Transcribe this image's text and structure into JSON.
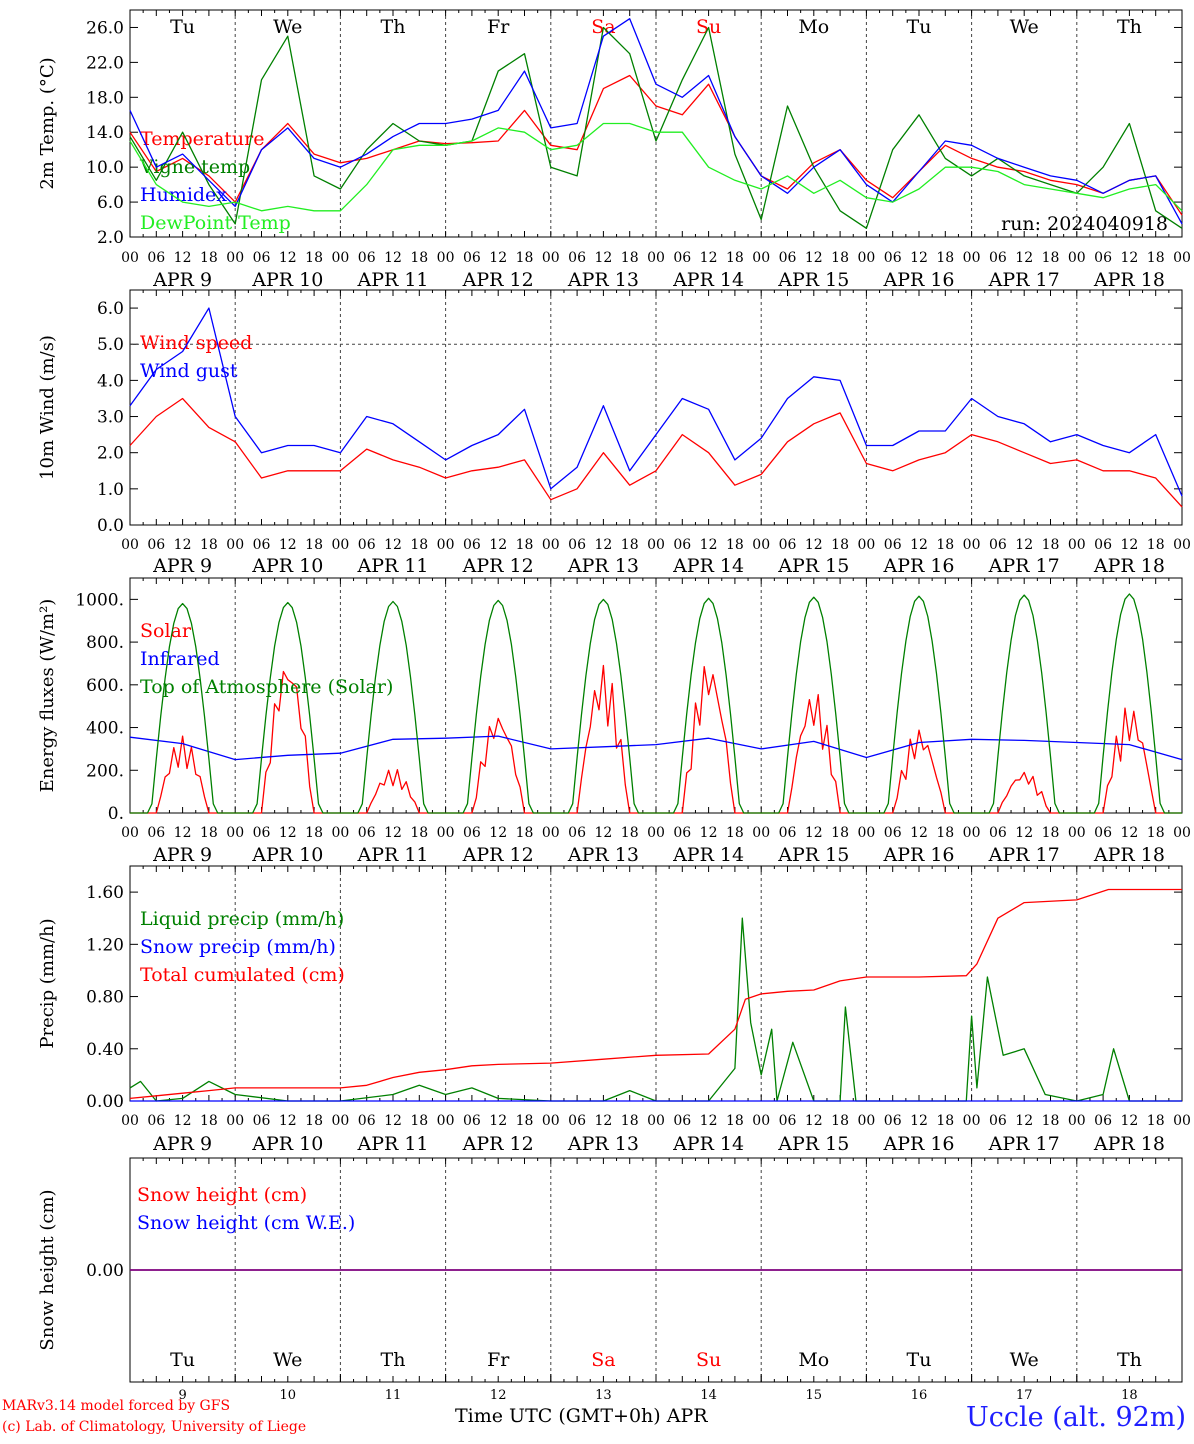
{
  "meta": {
    "days": 10,
    "day_abbrev": [
      "Tu",
      "We",
      "Th",
      "Fr",
      "Sa",
      "Su",
      "Mo",
      "Tu",
      "We",
      "Th"
    ],
    "weekend_idx": [
      4,
      5
    ],
    "date_labels": [
      "APR  9",
      "APR 10",
      "APR 11",
      "APR 12",
      "APR 13",
      "APR 14",
      "APR 15",
      "APR 16",
      "APR 17",
      "APR 18"
    ],
    "day_numbers": [
      "9",
      "10",
      "11",
      "12",
      "13",
      "14",
      "15",
      "16",
      "17",
      "18"
    ],
    "hour_ticks": [
      "00",
      "06",
      "12",
      "18"
    ],
    "run_label": "run: 2024040918",
    "footer_model": "MARv3.14 model forced by GFS",
    "footer_lab": "(c) Lab. of Climatology, University of Liege",
    "footer_axis": "Time UTC (GMT+0h) APR",
    "station": "Uccle (alt. 92m)"
  },
  "colors": {
    "red": "#ff0000",
    "blue": "#0000ff",
    "green": "#008000",
    "lightgreen": "#22ee22",
    "purple": "#7f007f"
  },
  "chart_data": [
    {
      "id": "temp",
      "type": "line",
      "ylabel": "2m Temp. (°C)",
      "ylim": [
        2.0,
        28.0
      ],
      "yticks": [
        2.0,
        6.0,
        10.0,
        14.0,
        18.0,
        22.0,
        26.0
      ],
      "tick_fmt": 1,
      "x_unit": "days since APR 9 00 UTC",
      "series": [
        {
          "name": "Temperature",
          "color": "red",
          "x": [
            0,
            0.25,
            0.5,
            0.75,
            1.0,
            1.25,
            1.5,
            1.75,
            2.0,
            2.25,
            2.5,
            2.75,
            3.0,
            3.25,
            3.5,
            3.75,
            4.0,
            4.25,
            4.5,
            4.75,
            5.0,
            5.25,
            5.5,
            5.75,
            6.0,
            6.25,
            6.5,
            6.75,
            7.0,
            7.25,
            7.5,
            7.75,
            8.0,
            8.25,
            8.5,
            8.75,
            9.0,
            9.25,
            9.5,
            9.75,
            10.0
          ],
          "y": [
            14.0,
            9.5,
            11.0,
            9.0,
            6.0,
            12.0,
            15.0,
            11.5,
            10.5,
            11.0,
            12.0,
            13.0,
            12.7,
            12.8,
            13.0,
            16.5,
            12.5,
            12.0,
            19.0,
            20.5,
            17.0,
            16.0,
            19.5,
            13.5,
            9.0,
            7.5,
            10.5,
            12.0,
            8.5,
            6.5,
            9.5,
            12.5,
            11.0,
            10.0,
            9.5,
            8.5,
            8.0,
            7.0,
            8.5,
            9.0,
            4.5
          ]
        },
        {
          "name": "Vigne temp",
          "color": "green",
          "x": [
            0,
            0.25,
            0.5,
            0.75,
            1.0,
            1.25,
            1.5,
            1.75,
            2.0,
            2.25,
            2.5,
            2.75,
            3.0,
            3.25,
            3.5,
            3.75,
            4.0,
            4.25,
            4.5,
            4.75,
            5.0,
            5.25,
            5.5,
            5.75,
            6.0,
            6.25,
            6.5,
            6.75,
            7.0,
            7.25,
            7.5,
            7.75,
            8.0,
            8.25,
            8.5,
            8.75,
            9.0,
            9.25,
            9.5,
            9.75,
            10.0
          ],
          "y": [
            13.5,
            8.5,
            14.0,
            8.0,
            3.5,
            20.0,
            25.0,
            9.0,
            7.5,
            12.0,
            15.0,
            13.0,
            12.5,
            13.0,
            21.0,
            23.0,
            10.0,
            9.0,
            26.0,
            23.0,
            13.0,
            20.0,
            26.0,
            11.5,
            4.0,
            17.0,
            10.0,
            5.0,
            3.0,
            12.0,
            16.0,
            11.0,
            9.0,
            11.0,
            9.0,
            8.0,
            7.0,
            10.0,
            15.0,
            5.0,
            3.0
          ]
        },
        {
          "name": "Humidex",
          "color": "blue",
          "x": [
            0,
            0.25,
            0.5,
            0.75,
            1.0,
            1.25,
            1.5,
            1.75,
            2.0,
            2.25,
            2.5,
            2.75,
            3.0,
            3.25,
            3.5,
            3.75,
            4.0,
            4.25,
            4.5,
            4.75,
            5.0,
            5.25,
            5.5,
            5.75,
            6.0,
            6.25,
            6.5,
            6.75,
            7.0,
            7.25,
            7.5,
            7.75,
            8.0,
            8.25,
            8.5,
            8.75,
            9.0,
            9.25,
            9.5,
            9.75,
            10.0
          ],
          "y": [
            16.5,
            10.0,
            11.5,
            8.5,
            5.5,
            12.0,
            14.5,
            11.0,
            10.0,
            11.5,
            13.5,
            15.0,
            15.0,
            15.5,
            16.5,
            21.0,
            14.5,
            15.0,
            25.0,
            27.0,
            19.5,
            18.0,
            20.5,
            13.5,
            9.0,
            7.0,
            10.0,
            12.0,
            8.0,
            6.0,
            9.5,
            13.0,
            12.5,
            11.0,
            10.0,
            9.0,
            8.5,
            7.0,
            8.5,
            9.0,
            3.5
          ]
        },
        {
          "name": "DewPoint Temp",
          "color": "lightgreen",
          "x": [
            0,
            0.25,
            0.5,
            0.75,
            1.0,
            1.25,
            1.5,
            1.75,
            2.0,
            2.25,
            2.5,
            2.75,
            3.0,
            3.25,
            3.5,
            3.75,
            4.0,
            4.25,
            4.5,
            4.75,
            5.0,
            5.25,
            5.5,
            5.75,
            6.0,
            6.25,
            6.5,
            6.75,
            7.0,
            7.25,
            7.5,
            7.75,
            8.0,
            8.25,
            8.5,
            8.75,
            9.0,
            9.25,
            9.5,
            9.75,
            10.0
          ],
          "y": [
            13.0,
            8.0,
            6.0,
            5.5,
            6.0,
            5.0,
            5.5,
            5.0,
            5.0,
            8.0,
            12.0,
            12.5,
            12.5,
            13.0,
            14.5,
            14.0,
            12.0,
            12.5,
            15.0,
            15.0,
            14.0,
            14.0,
            10.0,
            8.5,
            7.5,
            9.0,
            7.0,
            8.5,
            6.5,
            6.0,
            7.5,
            10.0,
            10.0,
            9.5,
            8.0,
            7.5,
            7.0,
            6.5,
            7.5,
            8.0,
            5.0
          ]
        }
      ]
    },
    {
      "id": "wind",
      "type": "line",
      "ylabel": "10m Wind (m/s)",
      "ylim": [
        0.0,
        6.5
      ],
      "yticks": [
        0.0,
        1.0,
        2.0,
        3.0,
        4.0,
        5.0,
        6.0
      ],
      "tick_fmt": 1,
      "hline": 5.0,
      "x_unit": "days since APR 9 00 UTC",
      "series": [
        {
          "name": "Wind speed",
          "color": "red",
          "x": [
            0,
            0.25,
            0.5,
            0.75,
            1.0,
            1.25,
            1.5,
            1.75,
            2.0,
            2.25,
            2.5,
            2.75,
            3.0,
            3.25,
            3.5,
            3.75,
            4.0,
            4.25,
            4.5,
            4.75,
            5.0,
            5.25,
            5.5,
            5.75,
            6.0,
            6.25,
            6.5,
            6.75,
            7.0,
            7.25,
            7.5,
            7.75,
            8.0,
            8.25,
            8.5,
            8.75,
            9.0,
            9.25,
            9.5,
            9.75,
            10.0
          ],
          "y": [
            2.2,
            3.0,
            3.5,
            2.7,
            2.3,
            1.3,
            1.5,
            1.5,
            1.5,
            2.1,
            1.8,
            1.6,
            1.3,
            1.5,
            1.6,
            1.8,
            0.7,
            1.0,
            2.0,
            1.1,
            1.5,
            2.5,
            2.0,
            1.1,
            1.4,
            2.3,
            2.8,
            3.1,
            1.7,
            1.5,
            1.8,
            2.0,
            2.5,
            2.3,
            2.0,
            1.7,
            1.8,
            1.5,
            1.5,
            1.3,
            0.5
          ]
        },
        {
          "name": "Wind gust",
          "color": "blue",
          "x": [
            0,
            0.25,
            0.5,
            0.75,
            1.0,
            1.25,
            1.5,
            1.75,
            2.0,
            2.25,
            2.5,
            2.75,
            3.0,
            3.25,
            3.5,
            3.75,
            4.0,
            4.25,
            4.5,
            4.75,
            5.0,
            5.25,
            5.5,
            5.75,
            6.0,
            6.25,
            6.5,
            6.75,
            7.0,
            7.25,
            7.5,
            7.75,
            8.0,
            8.25,
            8.5,
            8.75,
            9.0,
            9.25,
            9.5,
            9.75,
            10.0
          ],
          "y": [
            3.3,
            4.3,
            4.8,
            6.0,
            3.0,
            2.0,
            2.2,
            2.2,
            2.0,
            3.0,
            2.8,
            2.3,
            1.8,
            2.2,
            2.5,
            3.2,
            1.0,
            1.6,
            3.3,
            1.5,
            2.5,
            3.5,
            3.2,
            1.8,
            2.4,
            3.5,
            4.1,
            4.0,
            2.2,
            2.2,
            2.6,
            2.6,
            3.5,
            3.0,
            2.8,
            2.3,
            2.5,
            2.2,
            2.0,
            2.5,
            0.8
          ]
        }
      ]
    },
    {
      "id": "energy",
      "type": "line",
      "ylabel": "Energy fluxes (W/m²)",
      "ylim": [
        0,
        1100
      ],
      "yticks": [
        0,
        200,
        400,
        600,
        800,
        1000
      ],
      "tick_fmt": "dot",
      "x_unit": "days since APR 9 00 UTC",
      "series": [
        {
          "name": "Solar",
          "color": "red",
          "peaks": [
            360,
            740,
            210,
            480,
            700,
            730,
            580,
            400,
            200,
            510
          ]
        },
        {
          "name": "Infrared",
          "color": "blue",
          "x": [
            0,
            0.5,
            1.0,
            1.5,
            2.0,
            2.5,
            3.0,
            3.5,
            4.0,
            4.5,
            5.0,
            5.5,
            6.0,
            6.5,
            7.0,
            7.5,
            8.0,
            8.5,
            9.0,
            9.5,
            10.0
          ],
          "y": [
            355,
            325,
            250,
            270,
            280,
            345,
            350,
            360,
            300,
            310,
            320,
            350,
            300,
            335,
            260,
            330,
            345,
            340,
            330,
            320,
            250
          ]
        },
        {
          "name": "Top of Atmosphere (Solar)",
          "color": "green",
          "peaks": [
            980,
            985,
            990,
            995,
            1000,
            1005,
            1010,
            1015,
            1020,
            1025
          ]
        }
      ]
    },
    {
      "id": "precip",
      "type": "line",
      "ylabel": "Precip (mm/h)",
      "ylim": [
        0.0,
        1.8
      ],
      "yticks": [
        0.0,
        0.4,
        0.8,
        1.2,
        1.6
      ],
      "tick_fmt": 2,
      "x_unit": "days since APR 9 00 UTC",
      "series": [
        {
          "name": "Liquid precip (mm/h)",
          "color": "green",
          "x": [
            0,
            0.1,
            0.25,
            0.5,
            0.75,
            1.0,
            1.5,
            2.0,
            2.5,
            2.75,
            3.0,
            3.25,
            3.5,
            4.0,
            4.5,
            4.75,
            5.0,
            5.25,
            5.5,
            5.75,
            5.82,
            5.9,
            6.0,
            6.1,
            6.15,
            6.3,
            6.5,
            6.75,
            6.8,
            6.9,
            7.5,
            7.95,
            8.0,
            8.05,
            8.15,
            8.3,
            8.5,
            8.7,
            9.0,
            9.25,
            9.35,
            9.5,
            10.0
          ],
          "y": [
            0.1,
            0.15,
            0.0,
            0.02,
            0.15,
            0.05,
            0.0,
            0.0,
            0.05,
            0.12,
            0.05,
            0.1,
            0.02,
            0.0,
            0.0,
            0.08,
            0.0,
            0.0,
            0.0,
            0.25,
            1.4,
            0.6,
            0.2,
            0.55,
            0.0,
            0.45,
            0.0,
            0.0,
            0.72,
            0.0,
            0.0,
            0.0,
            0.65,
            0.1,
            0.95,
            0.35,
            0.4,
            0.05,
            0.0,
            0.05,
            0.4,
            0.0,
            0.0
          ]
        },
        {
          "name": "Snow precip (mm/h)",
          "color": "blue",
          "x": [
            0,
            10.0
          ],
          "y": [
            0.0,
            0.0
          ]
        },
        {
          "name": "Total cumulated (cm)",
          "color": "red",
          "x": [
            0,
            0.25,
            0.5,
            0.75,
            1.0,
            1.5,
            2.0,
            2.25,
            2.5,
            2.75,
            3.0,
            3.25,
            3.5,
            4.0,
            4.5,
            5.0,
            5.5,
            5.75,
            5.85,
            6.0,
            6.25,
            6.5,
            6.75,
            7.0,
            7.5,
            7.95,
            8.05,
            8.25,
            8.5,
            9.0,
            9.3,
            10.0
          ],
          "y": [
            0.02,
            0.04,
            0.06,
            0.08,
            0.1,
            0.1,
            0.1,
            0.12,
            0.18,
            0.22,
            0.24,
            0.27,
            0.28,
            0.29,
            0.32,
            0.35,
            0.36,
            0.55,
            0.78,
            0.82,
            0.84,
            0.85,
            0.92,
            0.95,
            0.95,
            0.96,
            1.05,
            1.4,
            1.52,
            1.54,
            1.62,
            1.62
          ]
        }
      ]
    },
    {
      "id": "snow",
      "type": "line",
      "ylabel": "Snow height (cm)",
      "ylim": [
        -1.0,
        1.0
      ],
      "yticks": [
        0.0
      ],
      "tick_fmt": 2,
      "x_unit": "days since APR 9 00 UTC",
      "series": [
        {
          "name": "Snow height (cm)",
          "color": "red",
          "x": [
            0,
            10
          ],
          "y": [
            0,
            0
          ]
        },
        {
          "name": "Snow height (cm W.E.)",
          "color": "blue",
          "x": [
            0,
            10
          ],
          "y": [
            0,
            0
          ]
        }
      ]
    }
  ]
}
